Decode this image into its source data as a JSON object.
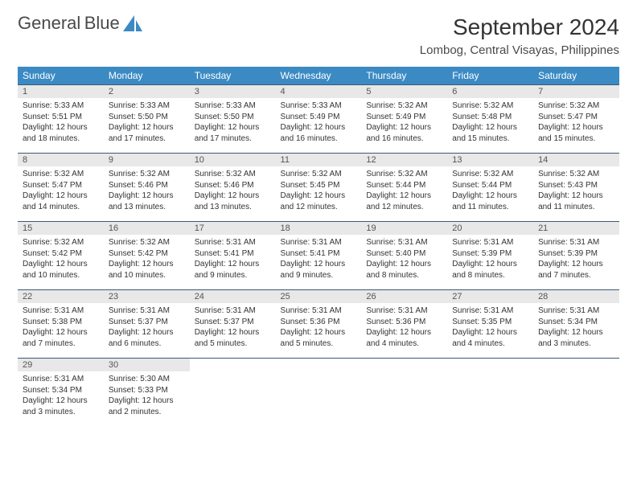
{
  "brand": {
    "word1": "General",
    "word2": "Blue",
    "icon_color": "#3b8ac4"
  },
  "title": "September 2024",
  "location": "Lombog, Central Visayas, Philippines",
  "colors": {
    "header_bg": "#3b8ac4",
    "daynum_bg": "#e8e8e8",
    "border": "#3b5a7a",
    "text": "#333333"
  },
  "weekday_labels": [
    "Sunday",
    "Monday",
    "Tuesday",
    "Wednesday",
    "Thursday",
    "Friday",
    "Saturday"
  ],
  "days": [
    {
      "n": 1,
      "sunrise": "5:33 AM",
      "sunset": "5:51 PM",
      "daylight": "12 hours and 18 minutes."
    },
    {
      "n": 2,
      "sunrise": "5:33 AM",
      "sunset": "5:50 PM",
      "daylight": "12 hours and 17 minutes."
    },
    {
      "n": 3,
      "sunrise": "5:33 AM",
      "sunset": "5:50 PM",
      "daylight": "12 hours and 17 minutes."
    },
    {
      "n": 4,
      "sunrise": "5:33 AM",
      "sunset": "5:49 PM",
      "daylight": "12 hours and 16 minutes."
    },
    {
      "n": 5,
      "sunrise": "5:32 AM",
      "sunset": "5:49 PM",
      "daylight": "12 hours and 16 minutes."
    },
    {
      "n": 6,
      "sunrise": "5:32 AM",
      "sunset": "5:48 PM",
      "daylight": "12 hours and 15 minutes."
    },
    {
      "n": 7,
      "sunrise": "5:32 AM",
      "sunset": "5:47 PM",
      "daylight": "12 hours and 15 minutes."
    },
    {
      "n": 8,
      "sunrise": "5:32 AM",
      "sunset": "5:47 PM",
      "daylight": "12 hours and 14 minutes."
    },
    {
      "n": 9,
      "sunrise": "5:32 AM",
      "sunset": "5:46 PM",
      "daylight": "12 hours and 13 minutes."
    },
    {
      "n": 10,
      "sunrise": "5:32 AM",
      "sunset": "5:46 PM",
      "daylight": "12 hours and 13 minutes."
    },
    {
      "n": 11,
      "sunrise": "5:32 AM",
      "sunset": "5:45 PM",
      "daylight": "12 hours and 12 minutes."
    },
    {
      "n": 12,
      "sunrise": "5:32 AM",
      "sunset": "5:44 PM",
      "daylight": "12 hours and 12 minutes."
    },
    {
      "n": 13,
      "sunrise": "5:32 AM",
      "sunset": "5:44 PM",
      "daylight": "12 hours and 11 minutes."
    },
    {
      "n": 14,
      "sunrise": "5:32 AM",
      "sunset": "5:43 PM",
      "daylight": "12 hours and 11 minutes."
    },
    {
      "n": 15,
      "sunrise": "5:32 AM",
      "sunset": "5:42 PM",
      "daylight": "12 hours and 10 minutes."
    },
    {
      "n": 16,
      "sunrise": "5:32 AM",
      "sunset": "5:42 PM",
      "daylight": "12 hours and 10 minutes."
    },
    {
      "n": 17,
      "sunrise": "5:31 AM",
      "sunset": "5:41 PM",
      "daylight": "12 hours and 9 minutes."
    },
    {
      "n": 18,
      "sunrise": "5:31 AM",
      "sunset": "5:41 PM",
      "daylight": "12 hours and 9 minutes."
    },
    {
      "n": 19,
      "sunrise": "5:31 AM",
      "sunset": "5:40 PM",
      "daylight": "12 hours and 8 minutes."
    },
    {
      "n": 20,
      "sunrise": "5:31 AM",
      "sunset": "5:39 PM",
      "daylight": "12 hours and 8 minutes."
    },
    {
      "n": 21,
      "sunrise": "5:31 AM",
      "sunset": "5:39 PM",
      "daylight": "12 hours and 7 minutes."
    },
    {
      "n": 22,
      "sunrise": "5:31 AM",
      "sunset": "5:38 PM",
      "daylight": "12 hours and 7 minutes."
    },
    {
      "n": 23,
      "sunrise": "5:31 AM",
      "sunset": "5:37 PM",
      "daylight": "12 hours and 6 minutes."
    },
    {
      "n": 24,
      "sunrise": "5:31 AM",
      "sunset": "5:37 PM",
      "daylight": "12 hours and 5 minutes."
    },
    {
      "n": 25,
      "sunrise": "5:31 AM",
      "sunset": "5:36 PM",
      "daylight": "12 hours and 5 minutes."
    },
    {
      "n": 26,
      "sunrise": "5:31 AM",
      "sunset": "5:36 PM",
      "daylight": "12 hours and 4 minutes."
    },
    {
      "n": 27,
      "sunrise": "5:31 AM",
      "sunset": "5:35 PM",
      "daylight": "12 hours and 4 minutes."
    },
    {
      "n": 28,
      "sunrise": "5:31 AM",
      "sunset": "5:34 PM",
      "daylight": "12 hours and 3 minutes."
    },
    {
      "n": 29,
      "sunrise": "5:31 AM",
      "sunset": "5:34 PM",
      "daylight": "12 hours and 3 minutes."
    },
    {
      "n": 30,
      "sunrise": "5:30 AM",
      "sunset": "5:33 PM",
      "daylight": "12 hours and 2 minutes."
    }
  ],
  "labels": {
    "sunrise": "Sunrise:",
    "sunset": "Sunset:",
    "daylight": "Daylight:"
  },
  "layout": {
    "first_weekday_index": 0,
    "total_days": 30,
    "cols": 7
  }
}
